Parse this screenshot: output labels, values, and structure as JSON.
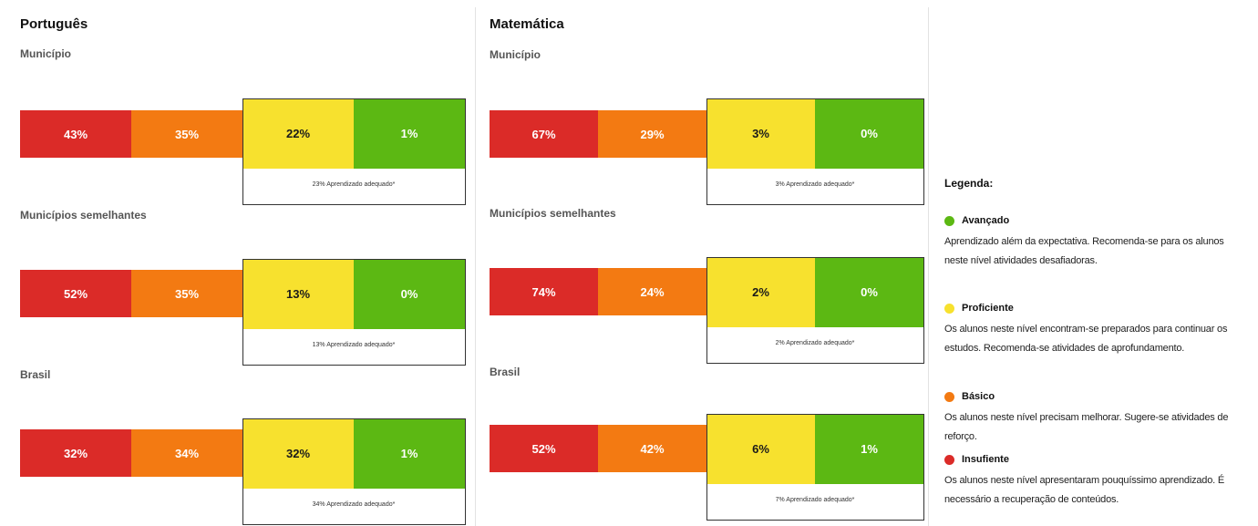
{
  "chart_data": [
    {
      "type": "bar",
      "title": "Português",
      "categories": [
        "Insuficiente",
        "Básico",
        "Proficiente",
        "Avançado"
      ],
      "series": [
        {
          "name": "Município",
          "values": [
            43,
            35,
            22,
            1
          ],
          "labels": [
            "43%",
            "35%",
            "22%",
            "1%"
          ],
          "adequate_label": "23% Aprendizado adequado*"
        },
        {
          "name": "Municípios semelhantes",
          "values": [
            52,
            35,
            13,
            0
          ],
          "labels": [
            "52%",
            "35%",
            "13%",
            "0%"
          ],
          "adequate_label": "13% Aprendizado adequado*"
        },
        {
          "name": "Brasil",
          "values": [
            32,
            34,
            32,
            1
          ],
          "labels": [
            "32%",
            "34%",
            "32%",
            "1%"
          ],
          "adequate_label": "34% Aprendizado adequado*"
        }
      ]
    },
    {
      "type": "bar",
      "title": "Matemática",
      "categories": [
        "Insuficiente",
        "Básico",
        "Proficiente",
        "Avançado"
      ],
      "series": [
        {
          "name": "Município",
          "values": [
            67,
            29,
            3,
            0
          ],
          "labels": [
            "67%",
            "29%",
            "3%",
            "0%"
          ],
          "adequate_label": "3% Aprendizado adequado*"
        },
        {
          "name": "Municípios semelhantes",
          "values": [
            74,
            24,
            2,
            0
          ],
          "labels": [
            "74%",
            "24%",
            "2%",
            "0%"
          ],
          "adequate_label": "2% Aprendizado adequado*"
        },
        {
          "name": "Brasil",
          "values": [
            52,
            42,
            6,
            1
          ],
          "labels": [
            "52%",
            "42%",
            "6%",
            "1%"
          ],
          "adequate_label": "7% Aprendizado adequado*"
        }
      ]
    }
  ],
  "colors": {
    "insuficiente": "#db2b28",
    "basico": "#f37a12",
    "proficiente": "#f7e12e",
    "avancado": "#5cb813"
  },
  "legend": {
    "title": "Legenda:",
    "items": [
      {
        "label": "Avançado",
        "color": "#5cb813",
        "description": "Aprendizado além da expectativa. Recomenda-se para os alunos neste nível atividades desafiadoras."
      },
      {
        "label": "Proficiente",
        "color": "#f7e12e",
        "description": "Os alunos neste nível encontram-se preparados para continuar os estudos. Recomenda-se atividades de aprofundamento."
      },
      {
        "label": "Básico",
        "color": "#f37a12",
        "description": "Os alunos neste nível precisam melhorar. Sugere-se atividades de reforço."
      },
      {
        "label": "Insufiente",
        "color": "#db2b28",
        "description": "Os alunos neste nível apresentaram pouquíssimo aprendizado. É necessário a recuperação de conteúdos."
      }
    ]
  }
}
